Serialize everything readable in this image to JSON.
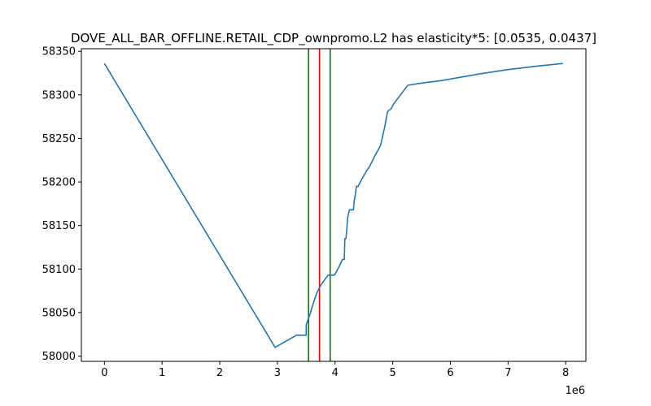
{
  "chart_data": {
    "type": "line",
    "title": "DOVE_ALL_BAR_OFFLINE.RETAIL_CDP_ownpromo.L2 has elasticity*5:   [0.0535, 0.0437]",
    "xlabel": "",
    "ylabel": "",
    "x_scale_label": "1e6",
    "xlim": [
      -400000,
      8350000
    ],
    "ylim": [
      57994,
      58353
    ],
    "x_ticks": [
      0,
      1000000,
      2000000,
      3000000,
      4000000,
      5000000,
      6000000,
      7000000,
      8000000
    ],
    "x_tick_labels": [
      "0",
      "1",
      "2",
      "3",
      "4",
      "5",
      "6",
      "7",
      "8"
    ],
    "y_ticks": [
      58000,
      58050,
      58100,
      58150,
      58200,
      58250,
      58300,
      58350
    ],
    "y_tick_labels": [
      "58000",
      "58050",
      "58100",
      "58150",
      "58200",
      "58250",
      "58300",
      "58350"
    ],
    "grid": false,
    "series": [
      {
        "color": "#1f77b4",
        "x": [
          0,
          2960000,
          3330000,
          3500000,
          3500000,
          3560000,
          3620000,
          3680000,
          3740000,
          3800000,
          3880000,
          3990000,
          4080000,
          4130000,
          4160000,
          4170000,
          4190000,
          4220000,
          4250000,
          4280000,
          4320000,
          4330000,
          4350000,
          4370000,
          4400000,
          4470000,
          4550000,
          4600000,
          4690000,
          4790000,
          4860000,
          4910000,
          4970000,
          5020000,
          5260000,
          5550000,
          5800000,
          5900000,
          6500000,
          7000000,
          7500000,
          7950000
        ],
        "y": [
          58336,
          58010,
          58024,
          58024,
          58036,
          58047,
          58060,
          58072,
          58080,
          58086,
          58093,
          58093,
          58104,
          58111,
          58111,
          58135,
          58135,
          58160,
          58168,
          58168,
          58168,
          58178,
          58185,
          58195,
          58195,
          58204,
          58213,
          58218,
          58230,
          58242,
          58263,
          58281,
          58284,
          58290,
          58311,
          58314,
          58316,
          58317,
          58324,
          58329,
          58333,
          58336
        ]
      }
    ],
    "vlines": [
      {
        "x": 3540000,
        "color": "#008000"
      },
      {
        "x": 3730000,
        "color": "#ff0000"
      },
      {
        "x": 3915000,
        "color": "#008000"
      }
    ]
  }
}
